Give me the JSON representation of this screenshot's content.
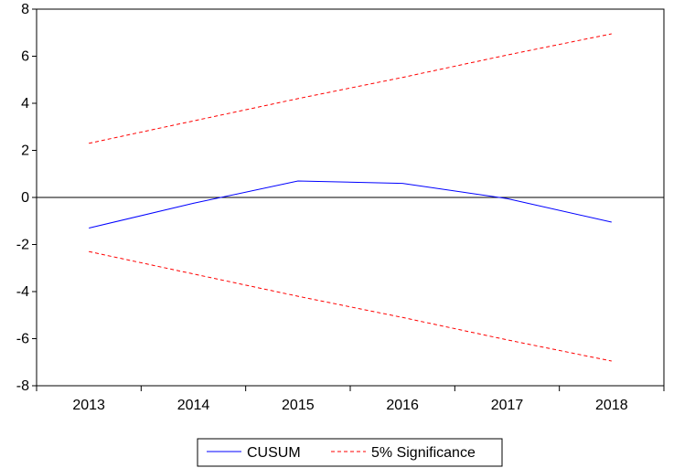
{
  "chart_data": {
    "type": "line",
    "x": [
      "2013",
      "2014",
      "2015",
      "2016",
      "2017",
      "2018"
    ],
    "series": [
      {
        "name": "CUSUM",
        "color": "#0000ff",
        "style": "solid",
        "values": [
          -1.3,
          -0.25,
          0.7,
          0.6,
          -0.05,
          -1.05
        ]
      },
      {
        "name": "5% Significance",
        "color": "#ff0000",
        "style": "dashed",
        "values": [
          2.3,
          3.25,
          4.2,
          5.1,
          6.05,
          6.95
        ]
      },
      {
        "name": "",
        "color": "#ff0000",
        "style": "dashed",
        "values": [
          -2.3,
          -3.25,
          -4.2,
          -5.1,
          -6.05,
          -6.95
        ]
      }
    ],
    "ylim": [
      -8,
      8
    ],
    "yticks": [
      "-8",
      "-6",
      "-4",
      "-2",
      "0",
      "2",
      "4",
      "6",
      "8"
    ],
    "zero_line": true,
    "grid": false,
    "legend_placement": "bottom-center",
    "legend": [
      "CUSUM",
      "5% Significance"
    ]
  }
}
